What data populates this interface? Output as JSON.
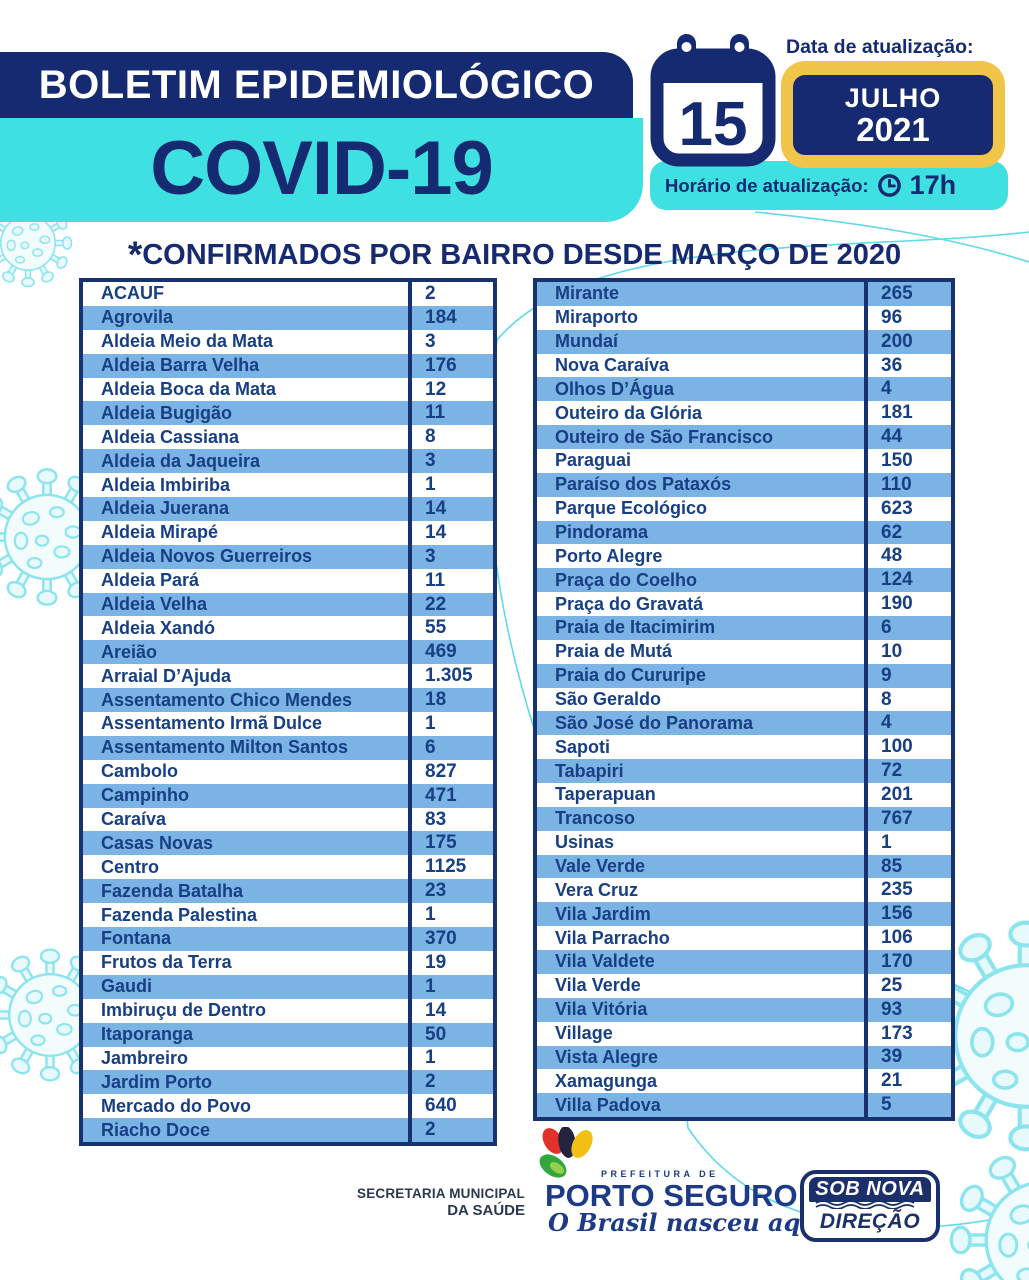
{
  "header": {
    "title": "BOLETIM EPIDEMIOLÓGICO",
    "subtitle": "COVID-19"
  },
  "update": {
    "date_label": "Data de atualização:",
    "calendar_day": "15",
    "month": "JULHO",
    "year": "2021",
    "time_label": "Horário de atualização:",
    "time_value": "17h"
  },
  "section_title": {
    "asterisk": "*",
    "text": "CONFIRMADOS POR BAIRRO DESDE MARÇO DE 2020"
  },
  "tables": {
    "left": {
      "rows": [
        {
          "name": "ACAUF",
          "value": "2"
        },
        {
          "name": "Agrovila",
          "value": "184"
        },
        {
          "name": "Aldeia Meio da Mata",
          "value": "3"
        },
        {
          "name": "Aldeia Barra Velha",
          "value": "176"
        },
        {
          "name": "Aldeia Boca da Mata",
          "value": "12"
        },
        {
          "name": "Aldeia Bugigão",
          "value": "11"
        },
        {
          "name": "Aldeia Cassiana",
          "value": "8"
        },
        {
          "name": "Aldeia da Jaqueira",
          "value": "3"
        },
        {
          "name": "Aldeia Imbiriba",
          "value": "1"
        },
        {
          "name": "Aldeia Juerana",
          "value": "14"
        },
        {
          "name": "Aldeia Mirapé",
          "value": "14"
        },
        {
          "name": "Aldeia Novos Guerreiros",
          "value": "3"
        },
        {
          "name": "Aldeia Pará",
          "value": "11"
        },
        {
          "name": "Aldeia Velha",
          "value": "22"
        },
        {
          "name": "Aldeia Xandó",
          "value": "55"
        },
        {
          "name": "Areião",
          "value": "469"
        },
        {
          "name": "Arraial D’Ajuda",
          "value": "1.305"
        },
        {
          "name": "Assentamento Chico Mendes",
          "value": "18"
        },
        {
          "name": "Assentamento Irmã Dulce",
          "value": "1"
        },
        {
          "name": "Assentamento Milton Santos",
          "value": "6"
        },
        {
          "name": "Cambolo",
          "value": "827"
        },
        {
          "name": "Campinho",
          "value": "471"
        },
        {
          "name": "Caraíva",
          "value": "83"
        },
        {
          "name": "Casas Novas",
          "value": "175"
        },
        {
          "name": "Centro",
          "value": "1125"
        },
        {
          "name": "Fazenda Batalha",
          "value": "23"
        },
        {
          "name": "Fazenda Palestina",
          "value": "1"
        },
        {
          "name": "Fontana",
          "value": "370"
        },
        {
          "name": "Frutos da Terra",
          "value": "19"
        },
        {
          "name": "Gaudi",
          "value": "1"
        },
        {
          "name": "Imbiruçu de Dentro",
          "value": "14"
        },
        {
          "name": "Itaporanga",
          "value": "50"
        },
        {
          "name": "Jambreiro",
          "value": "1"
        },
        {
          "name": "Jardim Porto",
          "value": "2"
        },
        {
          "name": "Mercado do Povo",
          "value": "640"
        },
        {
          "name": "Riacho Doce",
          "value": "2"
        }
      ]
    },
    "right": {
      "rows": [
        {
          "name": "Mirante",
          "value": "265"
        },
        {
          "name": "Miraporto",
          "value": "96"
        },
        {
          "name": "Mundaí",
          "value": "200"
        },
        {
          "name": "Nova Caraíva",
          "value": "36"
        },
        {
          "name": "Olhos D’Água",
          "value": "4"
        },
        {
          "name": "Outeiro da Glória",
          "value": "181"
        },
        {
          "name": "Outeiro de São Francisco",
          "value": "44"
        },
        {
          "name": "Paraguai",
          "value": "150"
        },
        {
          "name": "Paraíso dos Pataxós",
          "value": "110"
        },
        {
          "name": "Parque Ecológico",
          "value": "623"
        },
        {
          "name": "Pindorama",
          "value": "62"
        },
        {
          "name": "Porto Alegre",
          "value": "48"
        },
        {
          "name": "Praça do Coelho",
          "value": "124"
        },
        {
          "name": "Praça do Gravatá",
          "value": "190"
        },
        {
          "name": "Praia de Itacimirim",
          "value": "6"
        },
        {
          "name": "Praia de Mutá",
          "value": "10"
        },
        {
          "name": "Praia do Cururipe",
          "value": "9"
        },
        {
          "name": "São Geraldo",
          "value": "8"
        },
        {
          "name": "São José do Panorama",
          "value": "4"
        },
        {
          "name": "Sapoti",
          "value": "100"
        },
        {
          "name": "Tabapiri",
          "value": "72"
        },
        {
          "name": "Taperapuan",
          "value": "201"
        },
        {
          "name": "Trancoso",
          "value": "767"
        },
        {
          "name": "Usinas",
          "value": "1"
        },
        {
          "name": "Vale Verde",
          "value": "85"
        },
        {
          "name": "Vera Cruz",
          "value": "235"
        },
        {
          "name": "Vila Jardim",
          "value": "156"
        },
        {
          "name": "Vila Parracho",
          "value": "106"
        },
        {
          "name": "Vila Valdete",
          "value": "170"
        },
        {
          "name": "Vila Verde",
          "value": "25"
        },
        {
          "name": "Vila Vitória",
          "value": "93"
        },
        {
          "name": "Village",
          "value": "173"
        },
        {
          "name": "Vista Alegre",
          "value": "39"
        },
        {
          "name": "Xamagunga",
          "value": "21"
        },
        {
          "name": "Villa Padova",
          "value": "5"
        }
      ]
    }
  },
  "footer": {
    "secretaria_line1": "SECRETARIA MUNICIPAL",
    "secretaria_line2": "DA SAÚDE",
    "logo_top": "PREFEITURA DE",
    "logo_name": "PORTO SEGURO",
    "logo_slogan": "O Brasil nasceu aqui !",
    "badge_line1": "SOB NOVA",
    "badge_line2": "DIREÇÃO"
  },
  "colors": {
    "navy": "#152a70",
    "row_text": "#173f83",
    "row_blue": "#7bb4e4",
    "cyan": "#3fe0e2",
    "yellow": "#f0c54a",
    "badge_navy": "#1b2f6b",
    "virus_outline": "#8ce5ee"
  }
}
